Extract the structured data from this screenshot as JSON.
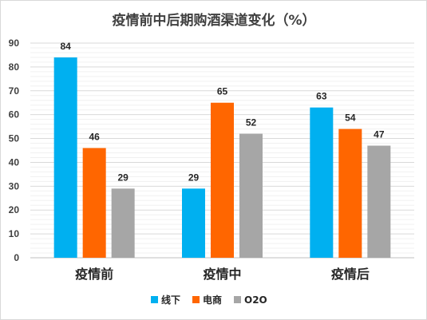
{
  "chart_data": {
    "type": "bar",
    "title": "疫情前中后期购酒渠道变化（%）",
    "categories": [
      "疫情前",
      "疫情中",
      "疫情后"
    ],
    "series": [
      {
        "name": "线下",
        "values": [
          84,
          29,
          63
        ],
        "color": "#00b0f0"
      },
      {
        "name": "电商",
        "values": [
          46,
          65,
          54
        ],
        "color": "#ff6600"
      },
      {
        "name": "O2O",
        "values": [
          29,
          52,
          47
        ],
        "color": "#a6a6a6"
      }
    ],
    "xlabel": "",
    "ylabel": "",
    "ylim": [
      0,
      90
    ],
    "yticks": [
      0,
      10,
      20,
      30,
      40,
      50,
      60,
      70,
      80,
      90
    ],
    "grid": true,
    "legend": "bottom",
    "data_labels": true
  }
}
